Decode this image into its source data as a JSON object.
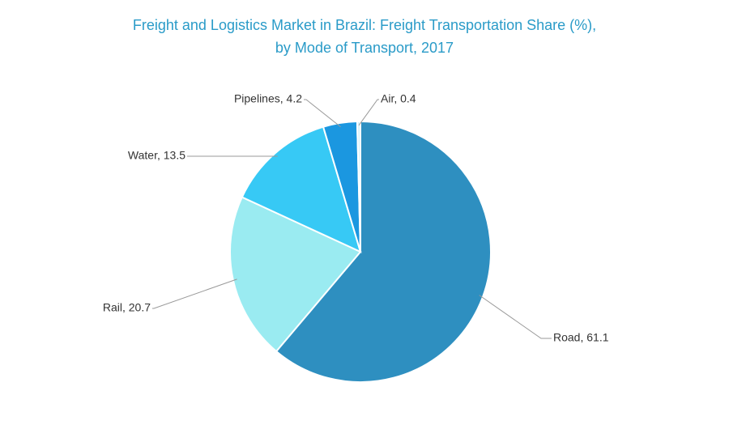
{
  "chart_data": {
    "type": "pie",
    "title": [
      "Freight and Logistics Market in Brazil: Freight Transportation  Share (%),",
      "by Mode of Transport, 2017"
    ],
    "categories": [
      "Road",
      "Rail",
      "Water",
      "Pipelines",
      "Air"
    ],
    "values": [
      61.1,
      20.7,
      13.5,
      4.2,
      0.4
    ],
    "value_labels": [
      "Road, 61.1",
      "Rail, 20.7",
      "Water, 13.5",
      "Pipelines, 4.2",
      "Air, 0.4"
    ],
    "colors": [
      "#2e8fc0",
      "#9aebf1",
      "#37c9f5",
      "#1b97e0",
      "#d6f2fa"
    ]
  }
}
